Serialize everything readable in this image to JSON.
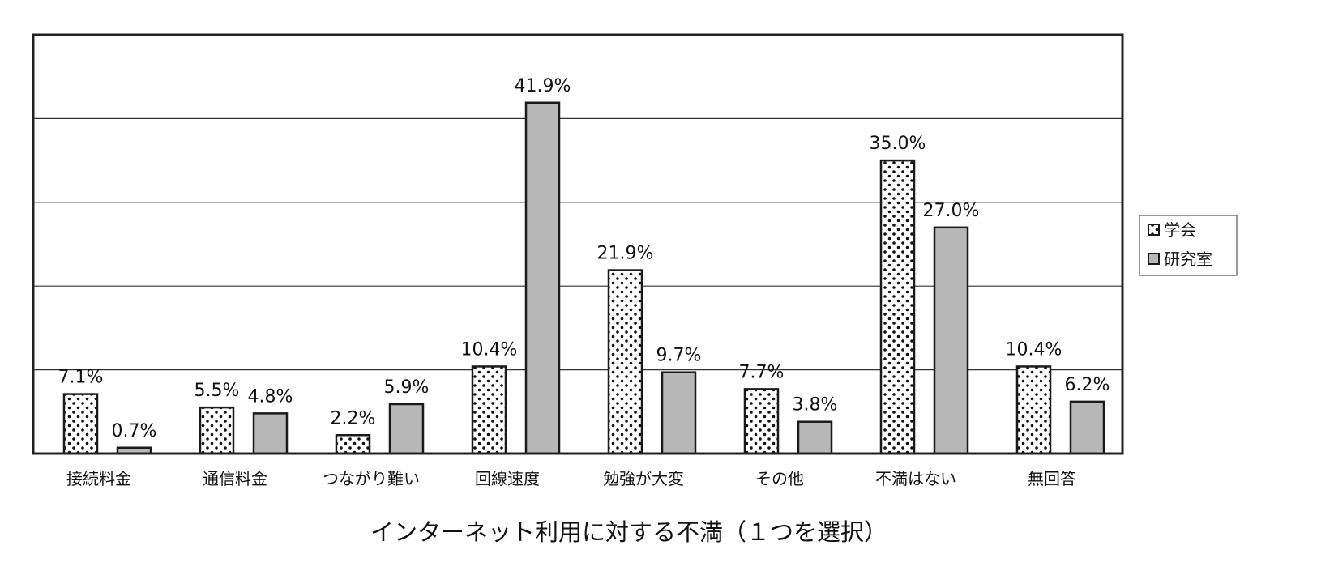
{
  "chart_data": {
    "type": "bar",
    "title": "",
    "xlabel": "インターネット利用に対する不満（１つを選択）",
    "ylabel": "",
    "ylim": [
      0,
      50
    ],
    "grid": true,
    "legend_position": "right",
    "categories": [
      "接続料金",
      "通信料金",
      "つながり難い",
      "回線速度",
      "勉強が大変",
      "その他",
      "不満はない",
      "無回答"
    ],
    "series": [
      {
        "name": "学会",
        "values": [
          7.1,
          5.5,
          2.2,
          10.4,
          21.9,
          7.7,
          35.0,
          10.4
        ],
        "labels": [
          "7.1%",
          "5.5%",
          "2.2%",
          "10.4%",
          "21.9%",
          "7.7%",
          "35.0%",
          "10.4%"
        ],
        "pattern": "dotted",
        "color": "#ffffff"
      },
      {
        "name": "研究室",
        "values": [
          0.7,
          4.8,
          5.9,
          41.9,
          9.7,
          3.8,
          27.0,
          6.2
        ],
        "labels": [
          "0.7%",
          "4.8%",
          "5.9%",
          "41.9%",
          "9.7%",
          "3.8%",
          "27.0%",
          "6.2%"
        ],
        "pattern": "gray",
        "color": "#b8b8b8"
      }
    ]
  }
}
